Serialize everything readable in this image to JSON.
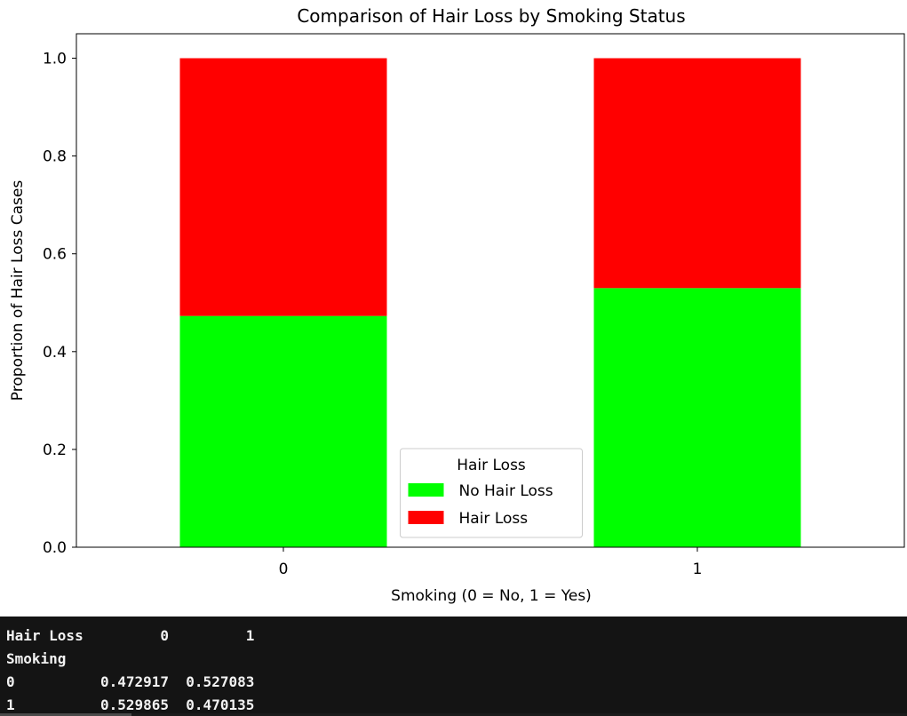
{
  "chart_data": {
    "type": "bar",
    "stacked": true,
    "title": "Comparison of Hair Loss by Smoking Status",
    "xlabel": "Smoking (0 = No, 1 = Yes)",
    "ylabel": "Proportion of Hair Loss Cases",
    "categories": [
      "0",
      "1"
    ],
    "ylim": [
      0,
      1.05
    ],
    "yticks": [
      "0.0",
      "0.2",
      "0.4",
      "0.6",
      "0.8",
      "1.0"
    ],
    "series": [
      {
        "name": "No Hair Loss",
        "values": [
          0.472917,
          0.529865
        ],
        "color": "#00ff00"
      },
      {
        "name": "Hair Loss",
        "values": [
          0.527083,
          0.470135
        ],
        "color": "#ff0000"
      }
    ],
    "legend": {
      "title": "Hair Loss",
      "placement": "lower center"
    },
    "grid": false
  },
  "console": {
    "lines": [
      "Hair Loss         0         1",
      "Smoking",
      "0          0.472917  0.527083",
      "1          0.529865  0.470135"
    ]
  }
}
